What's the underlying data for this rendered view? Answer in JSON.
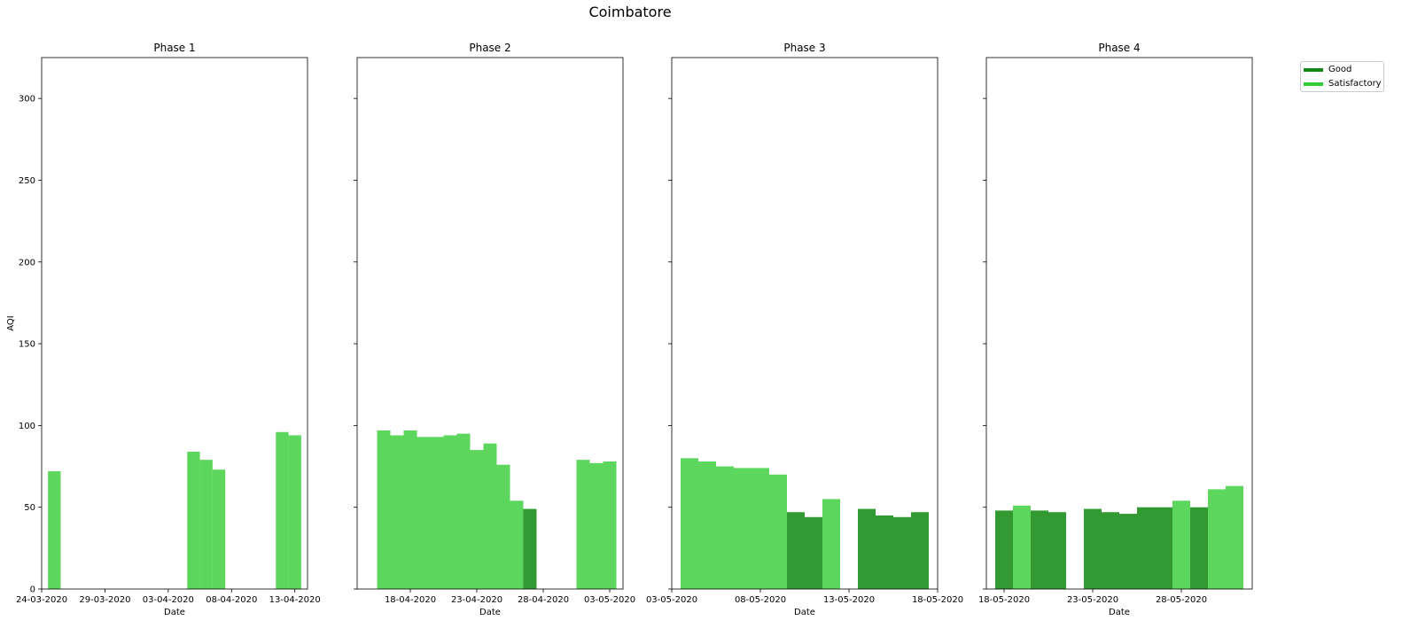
{
  "figure_title": "Coimbatore",
  "colors": {
    "good": "#339933",
    "satisfactory": "#5cd65c",
    "good_legend": "#138a13",
    "satisfactory_legend": "#33cc33"
  },
  "legend": [
    {
      "label": "Good",
      "category": "good"
    },
    {
      "label": "Satisfactory",
      "category": "satisfactory"
    }
  ],
  "chart_data": [
    {
      "type": "bar",
      "title": "Phase 1",
      "xlabel": "Date",
      "ylabel": "AQI",
      "ylim": [
        0,
        325
      ],
      "yticks": [
        0,
        50,
        100,
        150,
        200,
        250,
        300
      ],
      "xlim": [
        "24-03-2020",
        "14-04-2020"
      ],
      "xticks": [
        "24-03-2020",
        "29-03-2020",
        "03-04-2020",
        "08-04-2020",
        "13-04-2020"
      ],
      "points": [
        {
          "date": "25-03-2020",
          "aqi": 72,
          "category": "satisfactory"
        },
        {
          "date": "05-04-2020",
          "aqi": 84,
          "category": "satisfactory"
        },
        {
          "date": "06-04-2020",
          "aqi": 79,
          "category": "satisfactory"
        },
        {
          "date": "07-04-2020",
          "aqi": 73,
          "category": "satisfactory"
        },
        {
          "date": "12-04-2020",
          "aqi": 96,
          "category": "satisfactory"
        },
        {
          "date": "13-04-2020",
          "aqi": 94,
          "category": "satisfactory"
        }
      ]
    },
    {
      "type": "bar",
      "title": "Phase 2",
      "xlabel": "Date",
      "ylabel": "",
      "ylim": [
        0,
        325
      ],
      "xlim": [
        "14-04-2020",
        "04-05-2020"
      ],
      "xticks": [
        "18-04-2020",
        "23-04-2020",
        "28-04-2020",
        "03-05-2020"
      ],
      "points": [
        {
          "date": "16-04-2020",
          "aqi": 97,
          "category": "satisfactory"
        },
        {
          "date": "17-04-2020",
          "aqi": 94,
          "category": "satisfactory"
        },
        {
          "date": "18-04-2020",
          "aqi": 97,
          "category": "satisfactory"
        },
        {
          "date": "19-04-2020",
          "aqi": 93,
          "category": "satisfactory"
        },
        {
          "date": "20-04-2020",
          "aqi": 93,
          "category": "satisfactory"
        },
        {
          "date": "21-04-2020",
          "aqi": 94,
          "category": "satisfactory"
        },
        {
          "date": "22-04-2020",
          "aqi": 95,
          "category": "satisfactory"
        },
        {
          "date": "23-04-2020",
          "aqi": 85,
          "category": "satisfactory"
        },
        {
          "date": "24-04-2020",
          "aqi": 89,
          "category": "satisfactory"
        },
        {
          "date": "25-04-2020",
          "aqi": 76,
          "category": "satisfactory"
        },
        {
          "date": "26-04-2020",
          "aqi": 54,
          "category": "satisfactory"
        },
        {
          "date": "27-04-2020",
          "aqi": 49,
          "category": "good"
        },
        {
          "date": "01-05-2020",
          "aqi": 79,
          "category": "satisfactory"
        },
        {
          "date": "02-05-2020",
          "aqi": 77,
          "category": "satisfactory"
        },
        {
          "date": "03-05-2020",
          "aqi": 78,
          "category": "satisfactory"
        }
      ]
    },
    {
      "type": "bar",
      "title": "Phase 3",
      "xlabel": "Date",
      "ylabel": "",
      "ylim": [
        0,
        325
      ],
      "xlim": [
        "03-05-2020",
        "18-05-2020"
      ],
      "xticks": [
        "03-05-2020",
        "08-05-2020",
        "13-05-2020",
        "18-05-2020"
      ],
      "points": [
        {
          "date": "04-05-2020",
          "aqi": 80,
          "category": "satisfactory"
        },
        {
          "date": "05-05-2020",
          "aqi": 78,
          "category": "satisfactory"
        },
        {
          "date": "06-05-2020",
          "aqi": 75,
          "category": "satisfactory"
        },
        {
          "date": "07-05-2020",
          "aqi": 74,
          "category": "satisfactory"
        },
        {
          "date": "08-05-2020",
          "aqi": 74,
          "category": "satisfactory"
        },
        {
          "date": "09-05-2020",
          "aqi": 70,
          "category": "satisfactory"
        },
        {
          "date": "10-05-2020",
          "aqi": 47,
          "category": "good"
        },
        {
          "date": "11-05-2020",
          "aqi": 44,
          "category": "good"
        },
        {
          "date": "12-05-2020",
          "aqi": 55,
          "category": "satisfactory"
        },
        {
          "date": "14-05-2020",
          "aqi": 49,
          "category": "good"
        },
        {
          "date": "15-05-2020",
          "aqi": 45,
          "category": "good"
        },
        {
          "date": "16-05-2020",
          "aqi": 44,
          "category": "good"
        },
        {
          "date": "17-05-2020",
          "aqi": 47,
          "category": "good"
        }
      ]
    },
    {
      "type": "bar",
      "title": "Phase 4",
      "xlabel": "Date",
      "ylabel": "",
      "ylim": [
        0,
        325
      ],
      "xlim": [
        "17-05-2020",
        "01-06-2020"
      ],
      "xticks": [
        "18-05-2020",
        "23-05-2020",
        "28-05-2020"
      ],
      "points": [
        {
          "date": "18-05-2020",
          "aqi": 48,
          "category": "good"
        },
        {
          "date": "19-05-2020",
          "aqi": 51,
          "category": "satisfactory"
        },
        {
          "date": "20-05-2020",
          "aqi": 48,
          "category": "good"
        },
        {
          "date": "21-05-2020",
          "aqi": 47,
          "category": "good"
        },
        {
          "date": "23-05-2020",
          "aqi": 49,
          "category": "good"
        },
        {
          "date": "24-05-2020",
          "aqi": 47,
          "category": "good"
        },
        {
          "date": "25-05-2020",
          "aqi": 46,
          "category": "good"
        },
        {
          "date": "26-05-2020",
          "aqi": 50,
          "category": "good"
        },
        {
          "date": "27-05-2020",
          "aqi": 50,
          "category": "good"
        },
        {
          "date": "28-05-2020",
          "aqi": 54,
          "category": "satisfactory"
        },
        {
          "date": "29-05-2020",
          "aqi": 50,
          "category": "good"
        },
        {
          "date": "30-05-2020",
          "aqi": 61,
          "category": "satisfactory"
        },
        {
          "date": "31-05-2020",
          "aqi": 63,
          "category": "satisfactory"
        }
      ]
    }
  ]
}
